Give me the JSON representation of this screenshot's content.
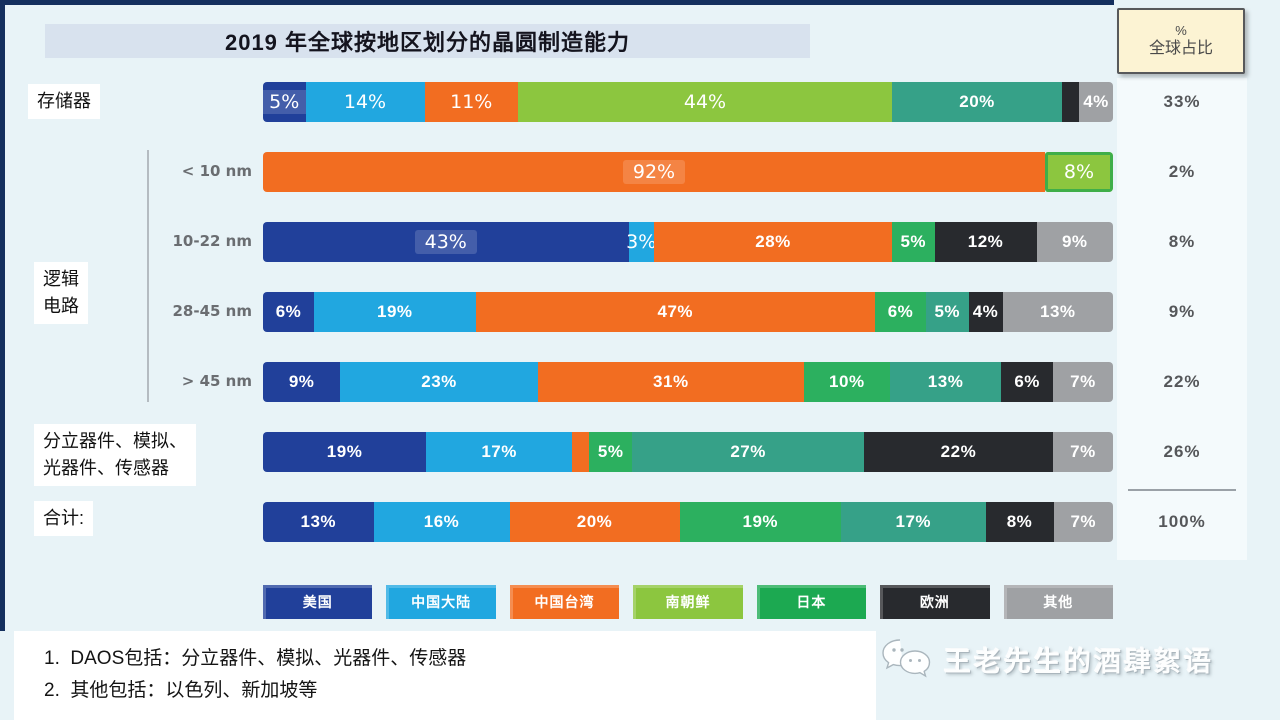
{
  "corner_note": {
    "line1": "%",
    "line2": "全球占比"
  },
  "labels": {
    "memory": "存储器",
    "logic": "逻辑\n电路",
    "daos": "分立器件、模拟、\n光器件、传感器",
    "total": "合计:"
  },
  "palette": {
    "us": "#21409a",
    "china": "#21a7e0",
    "taiwan": "#f26d21",
    "korea_light": "#8cc63f",
    "korea": "#2cb05f",
    "japan": "#36a188",
    "japan_legend": "#1ca951",
    "europe": "#282a2e",
    "others": "#9fa1a4"
  },
  "chart_data": {
    "type": "bar",
    "orientation": "horizontal-stacked",
    "title": "2019 年全球按地区划分的晶圆制造能力",
    "unit": "%",
    "right_column_header": "% 全球占比",
    "legend": [
      {
        "key": "us",
        "label": "美国",
        "color": "us"
      },
      {
        "key": "china",
        "label": "中国大陆",
        "color": "china"
      },
      {
        "key": "taiwan",
        "label": "中国台湾",
        "color": "taiwan"
      },
      {
        "key": "korea",
        "label": "南朝鲜",
        "color": "korea_light"
      },
      {
        "key": "japan",
        "label": "日本",
        "color": "japan_legend"
      },
      {
        "key": "europe",
        "label": "欧洲",
        "color": "europe"
      },
      {
        "key": "others",
        "label": "其他",
        "color": "others"
      }
    ],
    "rows": [
      {
        "key": "memory",
        "category": "存储器",
        "sub": "",
        "total": "33%",
        "segments": [
          {
            "region": "美国",
            "v": 5,
            "l": "5%",
            "c": "us",
            "thin": true,
            "hl": true
          },
          {
            "region": "中国大陆",
            "v": 14,
            "l": "14%",
            "c": "china",
            "thin": true
          },
          {
            "region": "中国台湾",
            "v": 11,
            "l": "11%",
            "c": "taiwan",
            "thin": true
          },
          {
            "region": "南朝鲜",
            "v": 44,
            "l": "44%",
            "c": "korea_light",
            "thin": true
          },
          {
            "region": "日本",
            "v": 20,
            "l": "20%",
            "c": "japan"
          },
          {
            "region": "欧洲",
            "v": 2,
            "l": "",
            "c": "europe"
          },
          {
            "region": "其他",
            "v": 4,
            "l": "4%",
            "c": "others"
          }
        ]
      },
      {
        "key": "lt10nm",
        "category": "逻辑电路",
        "sub": "< 10 nm",
        "total": "2%",
        "segments": [
          {
            "region": "中国台湾",
            "v": 92,
            "l": "92%",
            "c": "taiwan",
            "thin": true,
            "hl": true
          },
          {
            "region": "南朝鲜",
            "v": 8,
            "l": "8%",
            "c": "korea_light",
            "thin": true,
            "bordered": true
          }
        ]
      },
      {
        "key": "10-22nm",
        "category": "逻辑电路",
        "sub": "10-22 nm",
        "total": "8%",
        "segments": [
          {
            "region": "美国",
            "v": 43,
            "l": "43%",
            "c": "us",
            "thin": true,
            "hl": true
          },
          {
            "region": "中国大陆",
            "v": 3,
            "l": "3%",
            "c": "china",
            "thin": true
          },
          {
            "region": "中国台湾",
            "v": 28,
            "l": "28%",
            "c": "taiwan"
          },
          {
            "region": "南朝鲜",
            "v": 5,
            "l": "5%",
            "c": "korea"
          },
          {
            "region": "欧洲",
            "v": 12,
            "l": "12%",
            "c": "europe"
          },
          {
            "region": "其他",
            "v": 9,
            "l": "9%",
            "c": "others"
          }
        ]
      },
      {
        "key": "28-45nm",
        "category": "逻辑电路",
        "sub": "28-45 nm",
        "total": "9%",
        "segments": [
          {
            "region": "美国",
            "v": 6,
            "l": "6%",
            "c": "us"
          },
          {
            "region": "中国大陆",
            "v": 19,
            "l": "19%",
            "c": "china"
          },
          {
            "region": "中国台湾",
            "v": 47,
            "l": "47%",
            "c": "taiwan"
          },
          {
            "region": "南朝鲜",
            "v": 6,
            "l": "6%",
            "c": "korea"
          },
          {
            "region": "日本",
            "v": 5,
            "l": "5%",
            "c": "japan"
          },
          {
            "region": "欧洲",
            "v": 4,
            "l": "4%",
            "c": "europe"
          },
          {
            "region": "其他",
            "v": 13,
            "l": "13%",
            "c": "others"
          }
        ]
      },
      {
        "key": "gt45nm",
        "category": "逻辑电路",
        "sub": "> 45 nm",
        "total": "22%",
        "segments": [
          {
            "region": "美国",
            "v": 9,
            "l": "9%",
            "c": "us"
          },
          {
            "region": "中国大陆",
            "v": 23,
            "l": "23%",
            "c": "china"
          },
          {
            "region": "中国台湾",
            "v": 31,
            "l": "31%",
            "c": "taiwan"
          },
          {
            "region": "南朝鲜",
            "v": 10,
            "l": "10%",
            "c": "korea"
          },
          {
            "region": "日本",
            "v": 13,
            "l": "13%",
            "c": "japan"
          },
          {
            "region": "欧洲",
            "v": 6,
            "l": "6%",
            "c": "europe"
          },
          {
            "region": "其他",
            "v": 7,
            "l": "7%",
            "c": "others"
          }
        ]
      },
      {
        "key": "daos",
        "category": "分立器件、模拟、光器件、传感器",
        "sub": "",
        "total": "26%",
        "segments": [
          {
            "region": "美国",
            "v": 19,
            "l": "19%",
            "c": "us"
          },
          {
            "region": "中国大陆",
            "v": 17,
            "l": "17%",
            "c": "china"
          },
          {
            "region": "中国台湾",
            "v": 2,
            "l": "",
            "c": "taiwan"
          },
          {
            "region": "南朝鲜",
            "v": 5,
            "l": "5%",
            "c": "korea"
          },
          {
            "region": "日本",
            "v": 27,
            "l": "27%",
            "c": "japan"
          },
          {
            "region": "欧洲",
            "v": 22,
            "l": "22%",
            "c": "europe"
          },
          {
            "region": "其他",
            "v": 7,
            "l": "7%",
            "c": "others"
          }
        ]
      },
      {
        "key": "total",
        "category": "合计",
        "sub": "",
        "total": "100%",
        "segments": [
          {
            "region": "美国",
            "v": 13,
            "l": "13%",
            "c": "us"
          },
          {
            "region": "中国大陆",
            "v": 16,
            "l": "16%",
            "c": "china"
          },
          {
            "region": "中国台湾",
            "v": 20,
            "l": "20%",
            "c": "taiwan"
          },
          {
            "region": "南朝鲜",
            "v": 19,
            "l": "19%",
            "c": "korea"
          },
          {
            "region": "日本",
            "v": 17,
            "l": "17%",
            "c": "japan"
          },
          {
            "region": "欧洲",
            "v": 8,
            "l": "8%",
            "c": "europe"
          },
          {
            "region": "其他",
            "v": 7,
            "l": "7%",
            "c": "others"
          }
        ]
      }
    ]
  },
  "footnotes": [
    "1.  DAOS包括：分立器件、模拟、光器件、传感器",
    "2.  其他包括：以色列、新加坡等"
  ],
  "watermark": {
    "text": "王老先生的酒肆絮语"
  }
}
